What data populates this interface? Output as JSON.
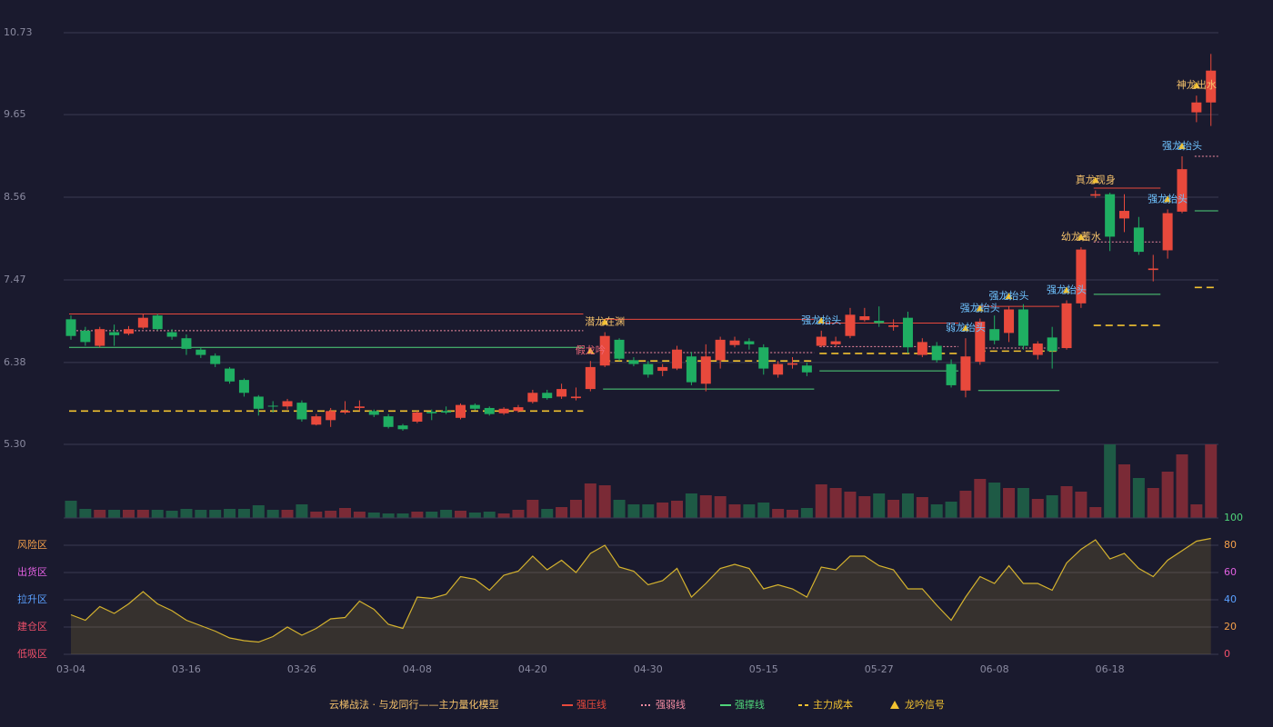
{
  "chart_data": [
    {
      "type": "candlestick",
      "categories": [
        "03-04",
        null,
        null,
        null,
        null,
        null,
        null,
        null,
        "03-16",
        null,
        null,
        null,
        null,
        null,
        null,
        null,
        "03-26",
        null,
        null,
        null,
        null,
        null,
        null,
        null,
        "04-08",
        null,
        null,
        null,
        null,
        null,
        null,
        null,
        "04-20",
        null,
        null,
        null,
        null,
        null,
        null,
        null,
        "04-30",
        null,
        null,
        null,
        null,
        null,
        null,
        null,
        "05-15",
        null,
        null,
        null,
        null,
        null,
        null,
        null,
        "05-27",
        null,
        null,
        null,
        null,
        null,
        null,
        null,
        "06-08",
        null,
        null,
        null,
        null,
        null,
        null,
        null,
        "06-18",
        null,
        null,
        null,
        null,
        null,
        null,
        null
      ],
      "open": [
        6.95,
        6.8,
        6.6,
        6.78,
        6.76,
        6.84,
        7.0,
        6.78,
        6.7,
        6.55,
        6.47,
        6.3,
        6.15,
        5.93,
        5.81,
        5.8,
        5.85,
        5.56,
        5.62,
        5.72,
        5.78,
        5.74,
        5.67,
        5.55,
        5.6,
        5.73,
        5.74,
        5.65,
        5.82,
        5.78,
        5.71,
        5.74,
        5.86,
        5.98,
        5.93,
        5.91,
        6.03,
        6.34,
        6.68,
        6.41,
        6.36,
        6.27,
        6.3,
        6.46,
        6.1,
        6.41,
        6.61,
        6.66,
        6.58,
        6.22,
        6.35,
        6.34,
        6.6,
        6.62,
        6.73,
        6.94,
        6.93,
        6.85,
        6.97,
        6.48,
        6.6,
        6.36,
        6.01,
        6.39,
        6.82,
        6.77,
        7.08,
        6.48,
        6.71,
        6.57,
        7.16,
        8.58,
        8.6,
        8.28,
        8.16,
        7.6,
        7.86,
        8.37,
        9.68,
        9.81
      ],
      "high": [
        7.0,
        6.85,
        6.85,
        6.88,
        6.86,
        7.02,
        7.02,
        6.82,
        6.75,
        6.58,
        6.5,
        6.32,
        6.17,
        5.95,
        5.87,
        5.9,
        5.88,
        5.7,
        5.78,
        5.87,
        5.88,
        5.76,
        5.7,
        5.57,
        5.74,
        5.76,
        5.8,
        5.84,
        5.84,
        5.8,
        5.79,
        5.82,
        6.02,
        6.02,
        6.1,
        6.05,
        6.4,
        6.78,
        6.7,
        6.45,
        6.4,
        6.36,
        6.6,
        6.52,
        6.62,
        6.72,
        6.72,
        6.7,
        6.62,
        6.4,
        6.45,
        6.38,
        6.8,
        6.72,
        7.1,
        7.1,
        7.12,
        6.95,
        7.05,
        6.7,
        6.65,
        6.42,
        6.7,
        6.96,
        7.0,
        7.12,
        7.15,
        6.66,
        6.85,
        7.2,
        7.9,
        8.65,
        8.62,
        8.6,
        8.3,
        7.8,
        8.4,
        9.1,
        9.9,
        10.45
      ],
      "low": [
        6.68,
        6.6,
        6.58,
        6.6,
        6.74,
        6.82,
        6.8,
        6.68,
        6.48,
        6.44,
        6.32,
        6.1,
        5.93,
        5.68,
        5.72,
        5.76,
        5.6,
        5.55,
        5.53,
        5.7,
        5.74,
        5.66,
        5.51,
        5.48,
        5.58,
        5.62,
        5.7,
        5.63,
        5.75,
        5.68,
        5.69,
        5.72,
        5.84,
        5.89,
        5.9,
        5.88,
        6.0,
        6.32,
        6.4,
        6.33,
        6.18,
        6.2,
        6.28,
        6.08,
        6.0,
        6.3,
        6.58,
        6.55,
        6.22,
        6.18,
        6.3,
        6.2,
        6.58,
        6.58,
        6.7,
        6.92,
        6.85,
        6.8,
        6.5,
        6.45,
        6.38,
        6.05,
        5.92,
        6.35,
        6.62,
        6.65,
        6.55,
        6.42,
        6.3,
        6.55,
        7.1,
        8.55,
        7.85,
        8.1,
        7.8,
        7.45,
        7.75,
        8.35,
        9.55,
        9.5
      ],
      "close": [
        6.73,
        6.65,
        6.82,
        6.74,
        6.82,
        6.97,
        6.82,
        6.72,
        6.56,
        6.48,
        6.36,
        6.13,
        5.98,
        5.77,
        5.8,
        5.87,
        5.63,
        5.67,
        5.74,
        5.74,
        5.8,
        5.69,
        5.53,
        5.5,
        5.72,
        5.71,
        5.72,
        5.82,
        5.77,
        5.7,
        5.77,
        5.79,
        5.98,
        5.91,
        6.03,
        5.93,
        6.32,
        6.73,
        6.43,
        6.36,
        6.22,
        6.32,
        6.55,
        6.12,
        6.46,
        6.68,
        6.67,
        6.62,
        6.3,
        6.36,
        6.37,
        6.25,
        6.72,
        6.66,
        7.01,
        6.99,
        6.9,
        6.87,
        6.58,
        6.65,
        6.41,
        6.08,
        6.46,
        6.92,
        6.67,
        7.08,
        6.6,
        6.63,
        6.53,
        7.16,
        7.87,
        8.6,
        8.04,
        8.38,
        7.84,
        7.62,
        8.35,
        8.93,
        9.81,
        10.23
      ],
      "up_color": "#e8493c",
      "down_color": "#1fae62",
      "ylim": [
        5.3,
        10.73
      ],
      "yticks": [
        {
          "value": 5.3,
          "label": "5.30"
        },
        6.38,
        7.47,
        8.56,
        9.65,
        10.73
      ],
      "grid": true,
      "levels": [
        {
          "from": 0,
          "to": 35,
          "value": 7.02,
          "color": "#e8493c",
          "style": "solid"
        },
        {
          "from": 0,
          "to": 35,
          "value": 6.8,
          "color": "#f08aa0",
          "style": "dotted"
        },
        {
          "from": 0,
          "to": 35,
          "value": 6.58,
          "color": "#4fd47a",
          "style": "solid"
        },
        {
          "from": 0,
          "to": 35,
          "value": 5.74,
          "color": "#f2c230",
          "style": "dashed"
        },
        {
          "from": 37,
          "to": 51,
          "value": 6.95,
          "color": "#e8493c",
          "style": "solid"
        },
        {
          "from": 37,
          "to": 51,
          "value": 6.51,
          "color": "#f08aa0",
          "style": "dotted"
        },
        {
          "from": 37,
          "to": 51,
          "value": 6.4,
          "color": "#f2c230",
          "style": "dashed"
        },
        {
          "from": 37,
          "to": 51,
          "value": 6.03,
          "color": "#4fd47a",
          "style": "solid"
        },
        {
          "from": 52,
          "to": 61,
          "value": 6.9,
          "color": "#e8493c",
          "style": "solid"
        },
        {
          "from": 52,
          "to": 61,
          "value": 6.59,
          "color": "#f08aa0",
          "style": "dotted"
        },
        {
          "from": 52,
          "to": 61,
          "value": 6.5,
          "color": "#f2c230",
          "style": "dashed"
        },
        {
          "from": 52,
          "to": 61,
          "value": 6.27,
          "color": "#4fd47a",
          "style": "solid"
        },
        {
          "from": 63,
          "to": 68,
          "value": 7.12,
          "color": "#e8493c",
          "style": "solid"
        },
        {
          "from": 63,
          "to": 68,
          "value": 6.57,
          "color": "#f08aa0",
          "style": "dotted"
        },
        {
          "from": 63,
          "to": 68,
          "value": 6.53,
          "color": "#f2c230",
          "style": "dashed"
        },
        {
          "from": 63,
          "to": 68,
          "value": 6.01,
          "color": "#4fd47a",
          "style": "solid"
        },
        {
          "from": 71,
          "to": 75,
          "value": 8.68,
          "color": "#e8493c",
          "style": "solid"
        },
        {
          "from": 71,
          "to": 75,
          "value": 7.97,
          "color": "#f08aa0",
          "style": "dotted"
        },
        {
          "from": 71,
          "to": 75,
          "value": 7.28,
          "color": "#4fd47a",
          "style": "solid"
        },
        {
          "from": 71,
          "to": 75,
          "value": 6.87,
          "color": "#f2c230",
          "style": "dashed"
        },
        {
          "from": 78,
          "to": 79,
          "value": 9.1,
          "color": "#f08aa0",
          "style": "dotted"
        },
        {
          "from": 78,
          "to": 79,
          "value": 8.38,
          "color": "#4fd47a",
          "style": "solid"
        },
        {
          "from": 78,
          "to": 79,
          "value": 7.37,
          "color": "#f2c230",
          "style": "dashed"
        }
      ],
      "signals": [
        {
          "index": 37,
          "text": "潜龙在渊",
          "color": "#f5c26b"
        },
        {
          "index": 36,
          "text": "假龙吟",
          "color": "#f06a7a"
        },
        {
          "index": 52,
          "text": "强龙抬头",
          "color": "#6fc3ff"
        },
        {
          "index": 62,
          "text": "弱龙抬头",
          "color": "#6fc3ff"
        },
        {
          "index": 63,
          "text": "强龙抬头",
          "color": "#6fc3ff"
        },
        {
          "index": 65,
          "text": "强龙抬头",
          "color": "#6fc3ff"
        },
        {
          "index": 69,
          "text": "强龙抬头",
          "color": "#6fc3ff"
        },
        {
          "index": 70,
          "text": "幼龙蓄水",
          "color": "#f5c26b"
        },
        {
          "index": 71,
          "text": "真龙现身",
          "color": "#f5c26b"
        },
        {
          "index": 76,
          "text": "强龙抬头",
          "color": "#6fc3ff"
        },
        {
          "index": 77,
          "text": "强龙抬头",
          "color": "#6fc3ff"
        },
        {
          "index": 78,
          "text": "神龙出水",
          "color": "#f5c26b"
        }
      ],
      "legend": {
        "title": "云梯战法 · 与龙同行——主力量化模型",
        "title_color": "#f5c26b",
        "items": [
          {
            "label": "强压线",
            "color": "#e8493c",
            "style": "solid"
          },
          {
            "label": "强弱线",
            "color": "#f08aa0",
            "style": "dotted"
          },
          {
            "label": "强撑线",
            "color": "#4fd47a",
            "style": "solid"
          },
          {
            "label": "主力成本",
            "color": "#f2c230",
            "style": "dashed"
          },
          {
            "label": "龙吟信号",
            "color": "#f2c230",
            "style": "triangle"
          }
        ]
      }
    },
    {
      "type": "bar",
      "values": [
        19,
        10,
        9,
        9,
        9,
        9,
        9,
        8,
        10,
        9,
        9,
        10,
        10,
        14,
        9,
        9,
        15,
        7,
        8,
        11,
        7,
        6,
        5,
        5,
        7,
        7,
        9,
        8,
        6,
        7,
        5,
        9,
        20,
        10,
        12,
        20,
        38,
        36,
        20,
        15,
        15,
        17,
        19,
        27,
        25,
        24,
        15,
        15,
        17,
        10,
        9,
        11,
        37,
        33,
        29,
        24,
        27,
        20,
        27,
        23,
        15,
        18,
        30,
        43,
        39,
        33,
        33,
        21,
        25,
        35,
        29,
        12,
        81,
        59,
        44,
        33,
        51,
        70,
        15,
        81
      ],
      "up_color": "#7a2a36",
      "down_color": "#1e5a45"
    },
    {
      "type": "line",
      "values": [
        29,
        25,
        35,
        30,
        37,
        46,
        37,
        32,
        25,
        21,
        17,
        12,
        10,
        9,
        13,
        20,
        14,
        19,
        26,
        27,
        39,
        33,
        22,
        19,
        42,
        41,
        44,
        57,
        55,
        47,
        58,
        61,
        72,
        62,
        69,
        60,
        74,
        80,
        64,
        61,
        51,
        54,
        63,
        42,
        52,
        63,
        66,
        63,
        48,
        51,
        48,
        42,
        64,
        62,
        72,
        72,
        65,
        62,
        48,
        48,
        36,
        25,
        42,
        57,
        52,
        65,
        52,
        52,
        47,
        67,
        77,
        84,
        70,
        74,
        63,
        57,
        69,
        76,
        83,
        85
      ],
      "color": "#d4b22e",
      "ylim": [
        0,
        100
      ],
      "yticks": [
        0,
        20,
        40,
        60,
        80,
        100
      ],
      "ytick_colors": [
        "#f0506a",
        "#f5a04a",
        "#5aa0ff",
        "#e060e0",
        "#f5a04a",
        "#4fd47a"
      ],
      "zones": [
        {
          "label": "风险区",
          "value": 80,
          "color": "#f5a04a"
        },
        {
          "label": "出货区",
          "value": 60,
          "color": "#e060e0"
        },
        {
          "label": "拉升区",
          "value": 40,
          "color": "#5aa0ff"
        },
        {
          "label": "建仓区",
          "value": 20,
          "color": "#f0506a"
        },
        {
          "label": "低吸区",
          "value": 0,
          "color": "#f0506a"
        }
      ]
    }
  ]
}
